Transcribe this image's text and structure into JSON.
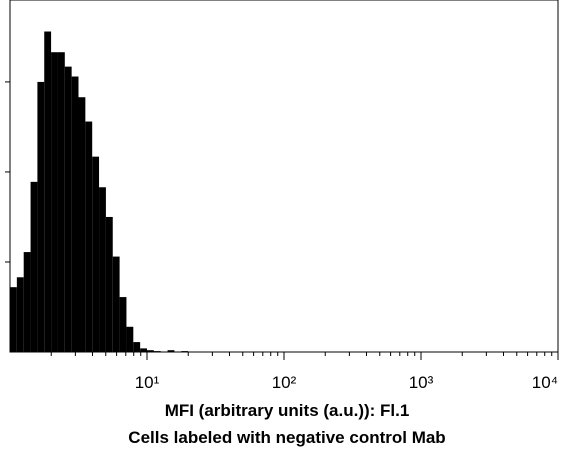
{
  "chart_data": {
    "type": "histogram",
    "title": "MFI (arbitrary units (a.u.)): Fl.1",
    "subtitle": "Cells labeled with negative control Mab",
    "bins": [
      1,
      1.122,
      1.259,
      1.413,
      1.585,
      1.778,
      1.995,
      2.239,
      2.512,
      2.818,
      3.162,
      3.548,
      3.981,
      4.467,
      5.012,
      5.623,
      6.31,
      7.079,
      7.943,
      8.913,
      10,
      11.22,
      12.59,
      14.13,
      15.85,
      17.78,
      19.95
    ],
    "values": [
      72,
      83,
      111,
      189,
      300,
      356,
      333,
      333,
      317,
      306,
      283,
      256,
      217,
      183,
      150,
      106,
      61,
      28,
      11,
      4,
      2,
      1,
      0,
      2,
      0,
      1
    ],
    "color": "#000000",
    "xscale": "log",
    "xlim": [
      1,
      10000
    ],
    "xticks": [
      {
        "value": 10,
        "label": "10¹"
      },
      {
        "value": 100,
        "label": "10²"
      },
      {
        "value": 1000,
        "label": "10³"
      },
      {
        "value": 10000,
        "label": "10⁴"
      }
    ],
    "minor_xticks": [
      2,
      3,
      4,
      5,
      6,
      7,
      8,
      9,
      20,
      30,
      40,
      50,
      60,
      70,
      80,
      90,
      200,
      300,
      400,
      500,
      600,
      700,
      800,
      900,
      2000,
      3000,
      4000,
      5000,
      6000,
      7000,
      8000,
      9000
    ],
    "ylim": [
      0,
      391
    ],
    "yticks": [
      100,
      200,
      300
    ],
    "grid": false
  }
}
